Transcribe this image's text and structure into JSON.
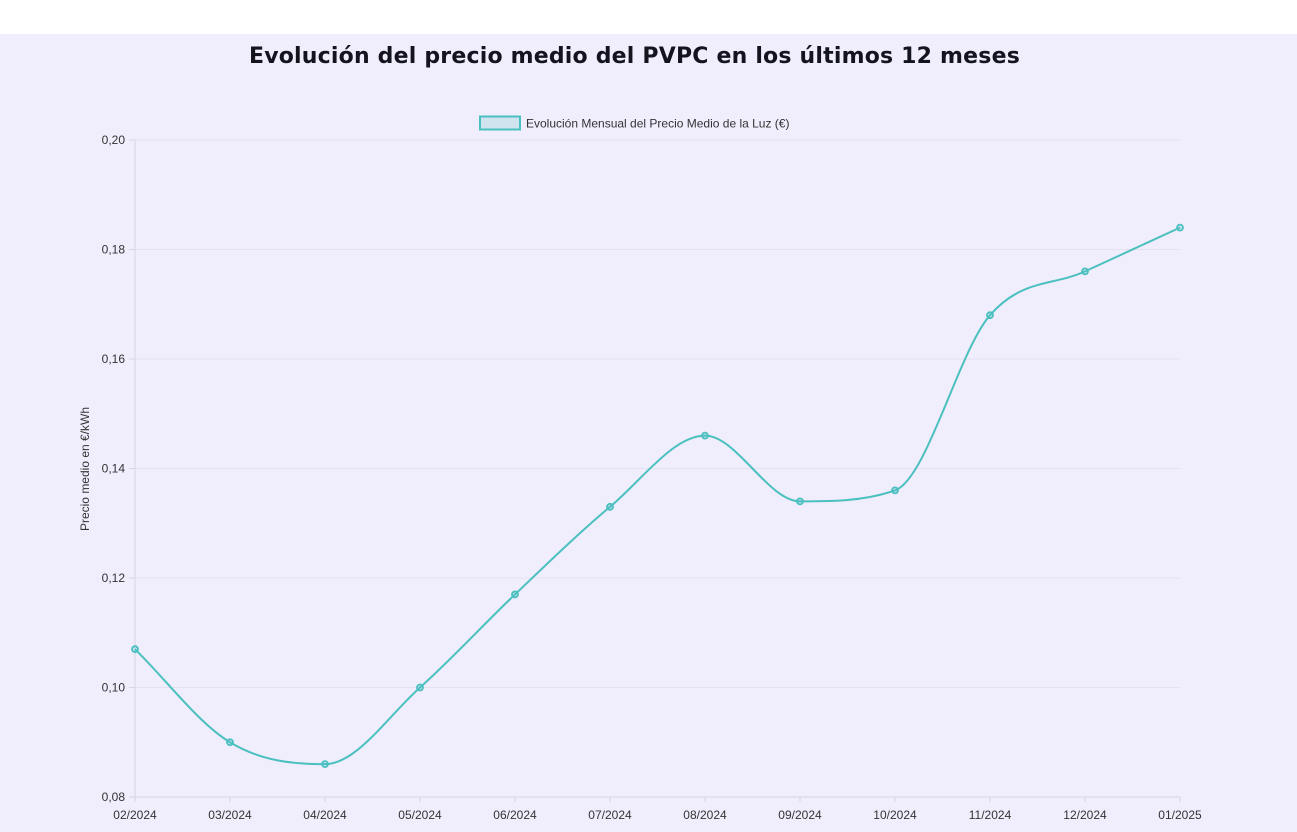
{
  "chart_data": {
    "type": "line",
    "title": "Evolución del precio medio del PVPC en los últimos 12 meses",
    "ylabel": "Precio medio en €/kWh",
    "xlabel": "",
    "categories": [
      "02/2024",
      "03/2024",
      "04/2024",
      "05/2024",
      "06/2024",
      "07/2024",
      "08/2024",
      "09/2024",
      "10/2024",
      "11/2024",
      "12/2024",
      "01/2025"
    ],
    "series": [
      {
        "name": "Evolución Mensual del Precio Medio de la Luz (€)",
        "values": [
          0.107,
          0.09,
          0.086,
          0.1,
          0.117,
          0.133,
          0.146,
          0.134,
          0.136,
          0.168,
          0.176,
          0.184
        ],
        "color": "#4bc0c0"
      }
    ],
    "ylim": [
      0.08,
      0.2
    ],
    "yticks": [
      0.08,
      0.1,
      0.12,
      0.14,
      0.16,
      0.18,
      0.2
    ],
    "ytick_labels": [
      "0,08",
      "0,10",
      "0,12",
      "0,14",
      "0,16",
      "0,18",
      "0,20"
    ],
    "grid": true,
    "legend": "top-center",
    "curve": "smooth"
  },
  "colors": {
    "background": "#f0eefc",
    "line": "#4bc0c0",
    "grid": "#e4e2f0",
    "title": "#14141f"
  }
}
